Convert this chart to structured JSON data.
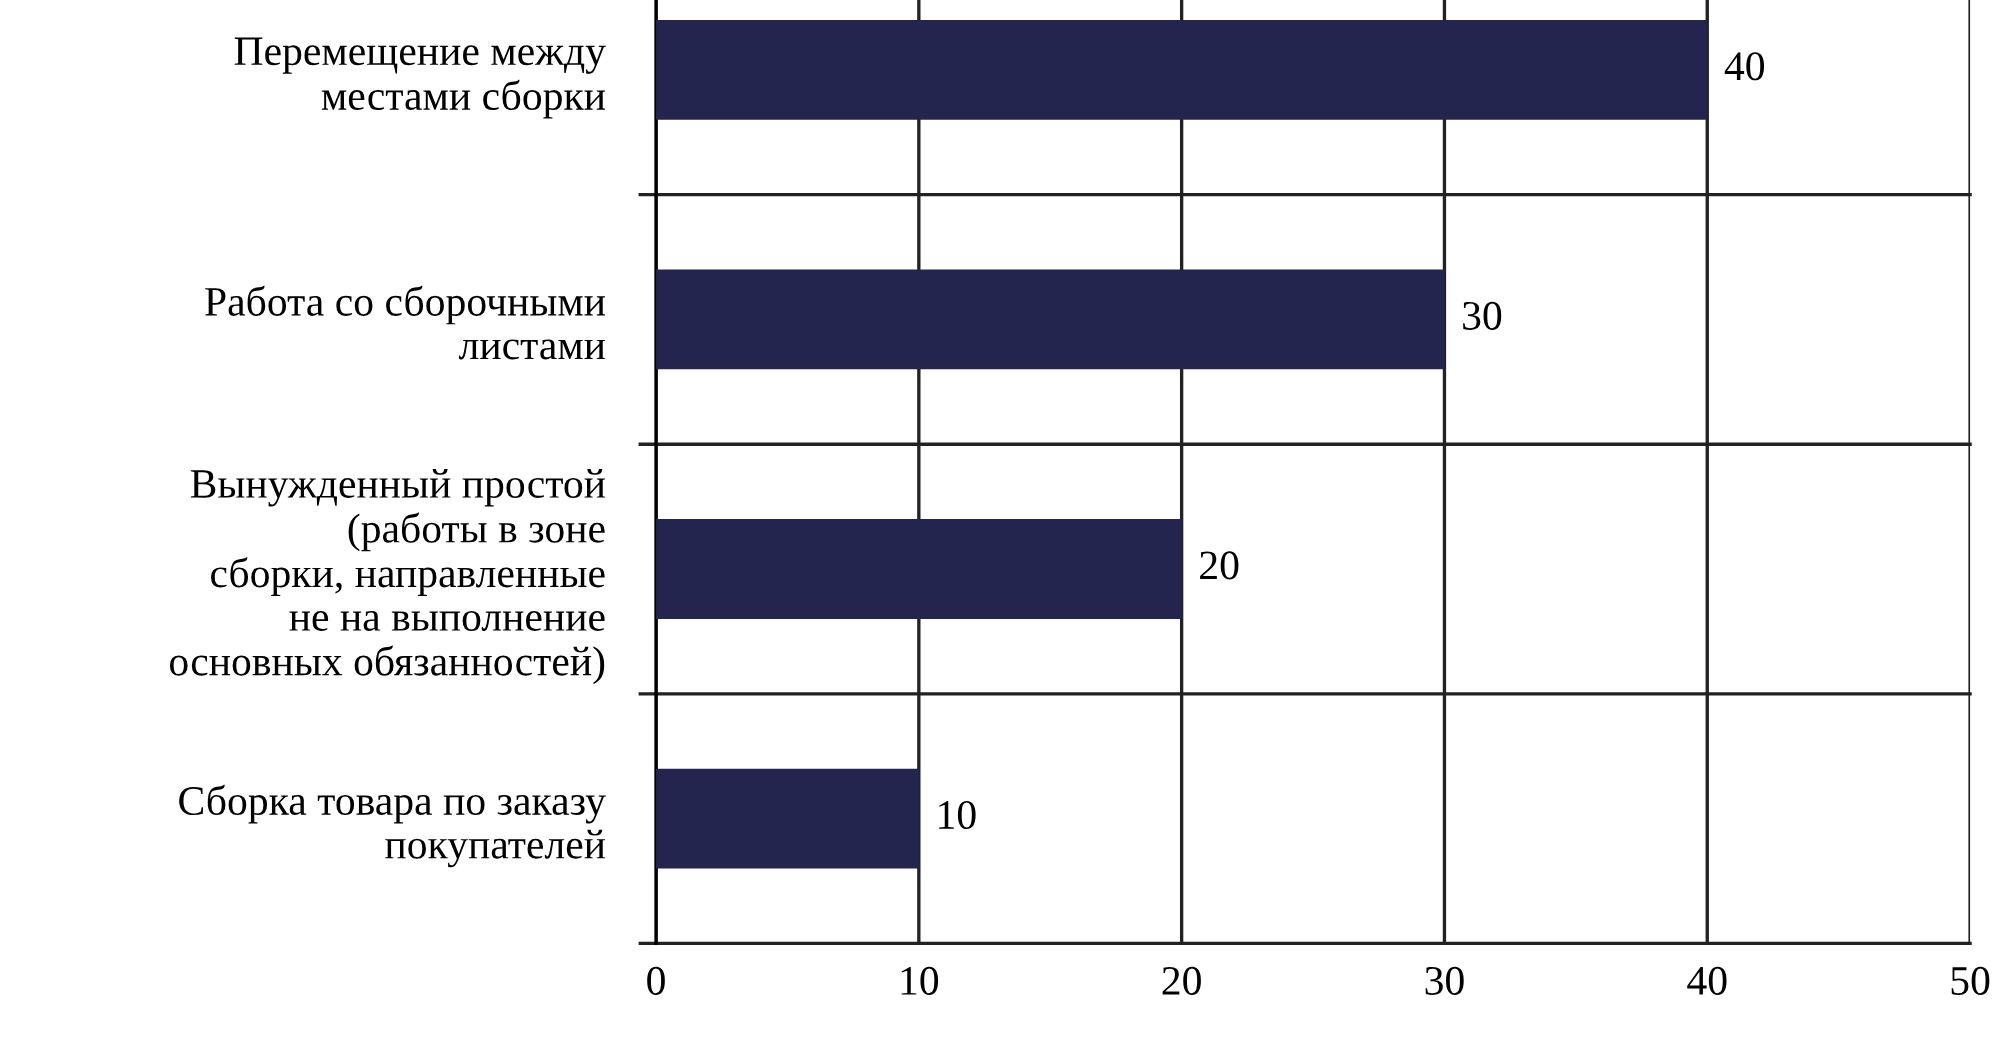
{
  "chart_data": {
    "type": "bar",
    "orientation": "horizontal",
    "categories": [
      "Перемещение между\nместами сборки",
      "Работа со сборочными\nлистами",
      "Вынужденный простой\n(работы в зоне\nсборки, направленные\nне на выполнение\nосновных обязанностей)",
      "Сборка товара по заказу\nпокупателей"
    ],
    "values": [
      40,
      30,
      20,
      10
    ],
    "color": "#23254f",
    "xlim": [
      0,
      50
    ],
    "xticks": [
      0,
      10,
      20,
      30,
      40,
      50
    ],
    "grid": true,
    "data_labels": true
  }
}
